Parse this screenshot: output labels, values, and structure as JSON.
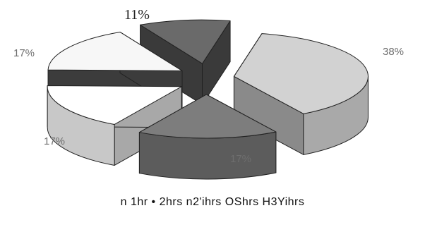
{
  "chart_data": {
    "type": "pie",
    "style": "exploded 3D pie",
    "slices": [
      {
        "label": "38%",
        "value": 38,
        "top": "#d2d2d2",
        "side": "#a9a9a9",
        "dark": "#8a8a8a"
      },
      {
        "label": "17%",
        "value": 17,
        "top": "#7d7d7d",
        "side": "#5c5c5c",
        "dark": "#4a4a4a"
      },
      {
        "label": "17%",
        "value": 17,
        "top": "#ffffff",
        "side": "#c8c8c8",
        "dark": "#a8a8a8"
      },
      {
        "label": "17%",
        "value": 17,
        "top": "#f7f7f7",
        "side": "#5a5a5a",
        "dark": "#3c3c3c"
      },
      {
        "label": "11%",
        "value": 11,
        "top": "#6a6a6a",
        "side": "#4e4e4e",
        "dark": "#3a3a3a"
      }
    ],
    "legend_text": "n 1hr • 2hrs n2'ihrs OShrs H3Yihrs"
  }
}
